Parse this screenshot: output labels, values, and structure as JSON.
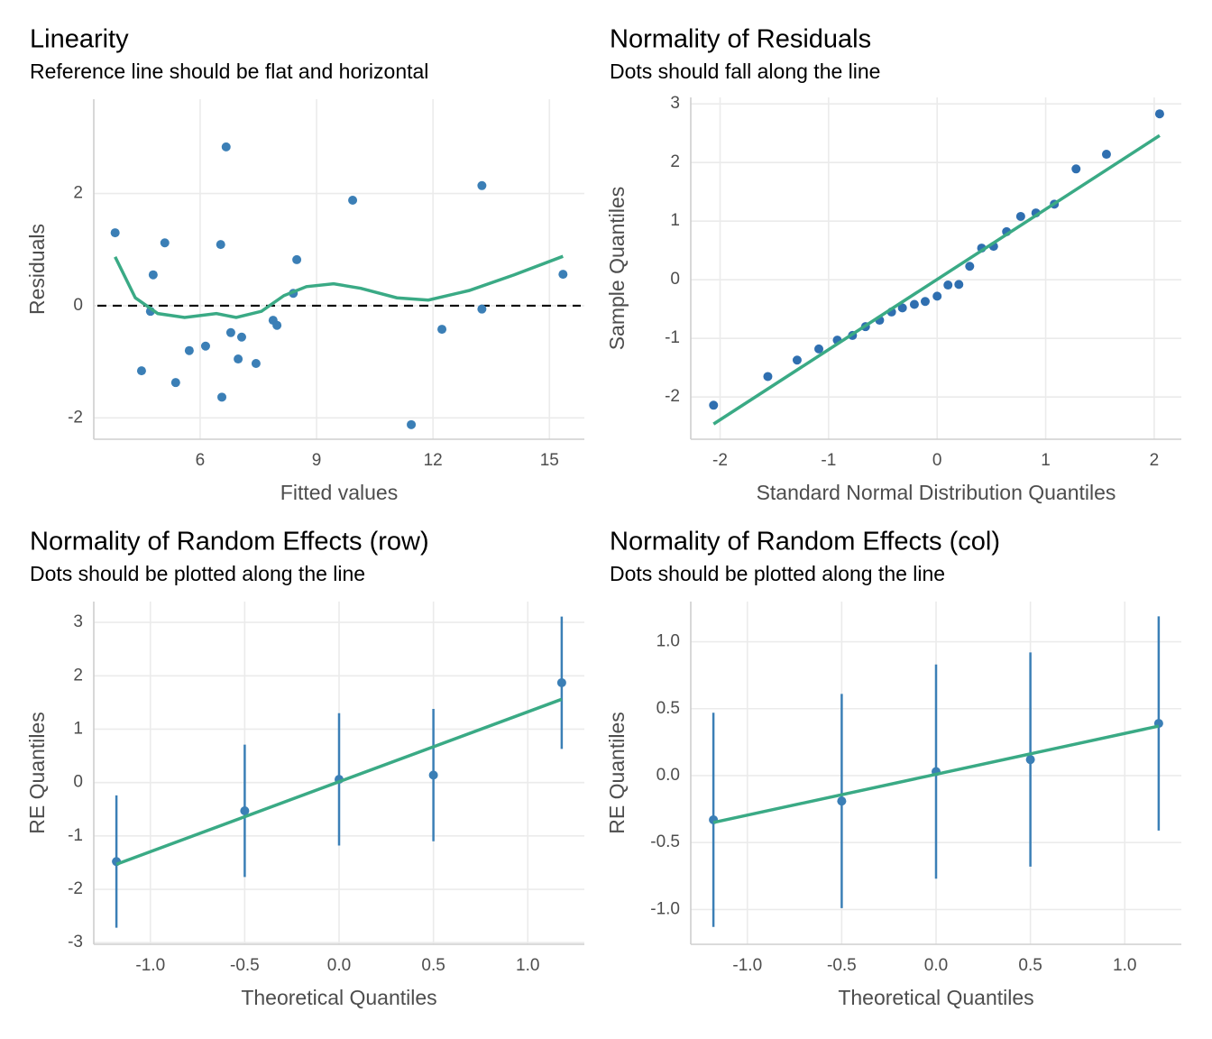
{
  "chart_data": [
    {
      "type": "scatter",
      "title": "Linearity",
      "subtitle": "Reference line should be flat and horizontal",
      "xlabel": "Fitted values",
      "ylabel": "Residuals",
      "xlim": [
        3.26,
        15.9
      ],
      "xticks": [
        6,
        9,
        12,
        15
      ],
      "ylim": [
        -2.38,
        3.68
      ],
      "yticks": [
        -2,
        0,
        2
      ],
      "grid": true,
      "hline": 0,
      "series": [
        {
          "style": "points",
          "color": "#3b7fb6",
          "x": [
            3.81,
            4.49,
            4.72,
            4.79,
            5.09,
            5.37,
            5.72,
            6.14,
            6.53,
            6.56,
            6.67,
            6.79,
            6.98,
            7.07,
            7.44,
            7.88,
            7.98,
            8.4,
            8.49,
            9.93,
            11.44,
            12.23,
            13.26,
            13.26,
            15.35
          ],
          "values": [
            1.3,
            -1.16,
            -0.1,
            0.55,
            1.12,
            -1.37,
            -0.8,
            -0.72,
            1.09,
            -1.63,
            2.83,
            -0.48,
            -0.95,
            -0.56,
            -1.03,
            -0.26,
            -0.35,
            0.22,
            0.82,
            1.88,
            -2.12,
            -0.42,
            2.14,
            -0.06,
            0.56
          ]
        },
        {
          "style": "line",
          "color": "#3aaa85",
          "x": [
            3.81,
            4.33,
            4.91,
            5.6,
            6.42,
            6.93,
            7.58,
            8.16,
            8.74,
            9.44,
            10.14,
            11.07,
            11.88,
            12.93,
            14.09,
            15.35
          ],
          "values": [
            0.87,
            0.14,
            -0.14,
            -0.21,
            -0.14,
            -0.21,
            -0.1,
            0.18,
            0.34,
            0.39,
            0.31,
            0.14,
            0.1,
            0.27,
            0.55,
            0.88
          ]
        }
      ]
    },
    {
      "type": "scatter",
      "title": "Normality of Residuals",
      "subtitle": "Dots should fall along the line",
      "xlabel": "Standard Normal Distribution Quantiles",
      "ylabel": "Sample Quantiles",
      "xlim": [
        -2.27,
        2.25
      ],
      "xticks": [
        -2,
        -1,
        0,
        1,
        2
      ],
      "ylim": [
        -2.72,
        3.11
      ],
      "yticks": [
        -2,
        -1,
        0,
        1,
        2,
        3
      ],
      "grid": true,
      "series": [
        {
          "style": "points",
          "color": "#2f6fb0",
          "x": [
            -2.06,
            -1.56,
            -1.29,
            -1.09,
            -0.92,
            -0.78,
            -0.66,
            -0.53,
            -0.42,
            -0.32,
            -0.21,
            -0.11,
            0,
            0.1,
            0.2,
            0.3,
            0.41,
            0.52,
            0.64,
            0.77,
            0.91,
            1.08,
            1.28,
            1.56,
            2.05
          ],
          "values": [
            -2.14,
            -1.65,
            -1.37,
            -1.18,
            -1.03,
            -0.95,
            -0.8,
            -0.69,
            -0.55,
            -0.48,
            -0.42,
            -0.37,
            -0.28,
            -0.09,
            -0.08,
            0.23,
            0.54,
            0.57,
            0.82,
            1.08,
            1.14,
            1.29,
            1.89,
            2.14,
            2.83
          ]
        },
        {
          "style": "line",
          "color": "#3aaa85",
          "x": [
            -2.06,
            2.05
          ],
          "values": [
            -2.46,
            2.46
          ]
        }
      ]
    },
    {
      "type": "errorbar",
      "title": "Normality of Random Effects (row)",
      "subtitle": "Dots should be plotted along the line",
      "xlabel": "Theoretical Quantiles",
      "ylabel": "RE Quantiles",
      "xlim": [
        -1.3,
        1.3
      ],
      "xticks": [
        {
          "value": -1,
          "label": "-1.0"
        },
        {
          "value": -0.5,
          "label": "-0.5"
        },
        {
          "value": 0,
          "label": "0.0"
        },
        {
          "value": 0.5,
          "label": "0.5"
        },
        {
          "value": 1,
          "label": "1.0"
        }
      ],
      "ylim": [
        -3.03,
        3.39
      ],
      "yticks": [
        -3,
        -2,
        -1,
        0,
        1,
        2,
        3
      ],
      "grid": true,
      "series": [
        {
          "style": "points",
          "color": "#3b7fb6",
          "x": [
            -1.18,
            -0.5,
            0,
            0.5,
            1.18
          ],
          "values": [
            -1.48,
            -0.53,
            0.06,
            0.14,
            1.87
          ],
          "errors": [
            1.24,
            1.24,
            1.24,
            1.24,
            1.24
          ]
        },
        {
          "style": "line",
          "color": "#3aaa85",
          "x": [
            -1.18,
            1.18
          ],
          "values": [
            -1.53,
            1.56
          ]
        }
      ]
    },
    {
      "type": "errorbar",
      "title": "Normality of Random Effects (col)",
      "subtitle": "Dots should be plotted along the line",
      "xlabel": "Theoretical Quantiles",
      "ylabel": "RE Quantiles",
      "xlim": [
        -1.3,
        1.3
      ],
      "xticks": [
        {
          "value": -1,
          "label": "-1.0"
        },
        {
          "value": -0.5,
          "label": "-0.5"
        },
        {
          "value": 0,
          "label": "0.0"
        },
        {
          "value": 0.5,
          "label": "0.5"
        },
        {
          "value": 1,
          "label": "1.0"
        }
      ],
      "ylim": [
        -1.26,
        1.3
      ],
      "yticks": [
        {
          "value": -1,
          "label": "-1.0"
        },
        {
          "value": -0.5,
          "label": "-0.5"
        },
        {
          "value": 0,
          "label": "0.0"
        },
        {
          "value": 0.5,
          "label": "0.5"
        },
        {
          "value": 1,
          "label": "1.0"
        }
      ],
      "grid": true,
      "series": [
        {
          "style": "points",
          "color": "#3b7fb6",
          "x": [
            -1.18,
            -0.5,
            0,
            0.5,
            1.18
          ],
          "values": [
            -0.33,
            -0.19,
            0.03,
            0.12,
            0.39
          ],
          "errors": [
            0.8,
            0.8,
            0.8,
            0.8,
            0.8
          ]
        },
        {
          "style": "line",
          "color": "#3aaa85",
          "x": [
            -1.18,
            1.18
          ],
          "values": [
            -0.35,
            0.37
          ]
        }
      ]
    }
  ]
}
